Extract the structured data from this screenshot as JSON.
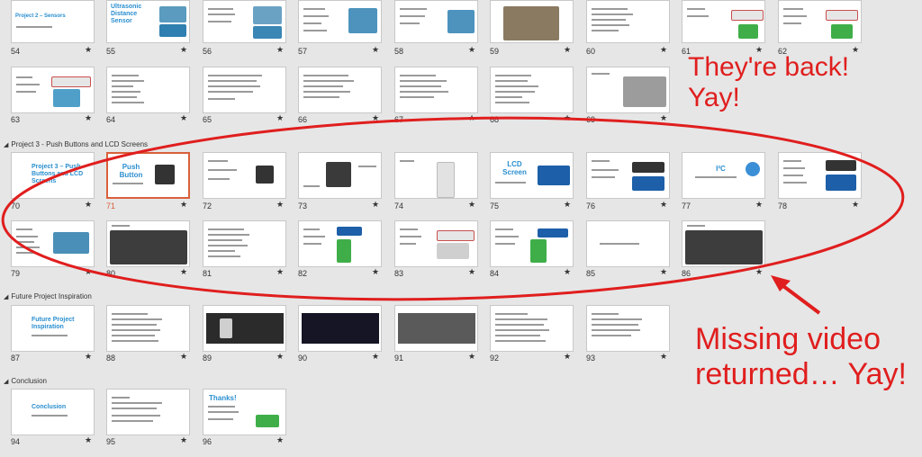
{
  "sections": [
    {
      "label": "Project 3 - Push Buttons and LCD Screens"
    },
    {
      "label": "Future Project Inspiration"
    },
    {
      "label": "Conclusion"
    }
  ],
  "rows": [
    {
      "slides": [
        {
          "num": "54",
          "title": "Project 2 – Sensors"
        },
        {
          "num": "55",
          "title": "Ultrasonic Distance Sensor"
        },
        {
          "num": "56",
          "title": ""
        },
        {
          "num": "57",
          "title": ""
        },
        {
          "num": "58",
          "title": ""
        },
        {
          "num": "59",
          "title": ""
        },
        {
          "num": "60",
          "title": ""
        },
        {
          "num": "61",
          "title": ""
        },
        {
          "num": "62",
          "title": ""
        }
      ]
    },
    {
      "slides": [
        {
          "num": "63",
          "title": ""
        },
        {
          "num": "64",
          "title": ""
        },
        {
          "num": "65",
          "title": ""
        },
        {
          "num": "66",
          "title": ""
        },
        {
          "num": "67",
          "title": ""
        },
        {
          "num": "68",
          "title": ""
        },
        {
          "num": "69",
          "title": ""
        }
      ]
    },
    {
      "slides": [
        {
          "num": "70",
          "title": "Project 3 – Push Buttons and LCD Screens"
        },
        {
          "num": "71",
          "title": "Push Button"
        },
        {
          "num": "72",
          "title": ""
        },
        {
          "num": "73",
          "title": ""
        },
        {
          "num": "74",
          "title": ""
        },
        {
          "num": "75",
          "title": "LCD Screen"
        },
        {
          "num": "76",
          "title": ""
        },
        {
          "num": "77",
          "title": "I²C"
        },
        {
          "num": "78",
          "title": ""
        }
      ]
    },
    {
      "slides": [
        {
          "num": "79",
          "title": ""
        },
        {
          "num": "80",
          "title": ""
        },
        {
          "num": "81",
          "title": ""
        },
        {
          "num": "82",
          "title": ""
        },
        {
          "num": "83",
          "title": ""
        },
        {
          "num": "84",
          "title": ""
        },
        {
          "num": "85",
          "title": ""
        },
        {
          "num": "86",
          "title": ""
        }
      ]
    },
    {
      "slides": [
        {
          "num": "87",
          "title": "Future Project Inspiration"
        },
        {
          "num": "88",
          "title": ""
        },
        {
          "num": "89",
          "title": ""
        },
        {
          "num": "90",
          "title": ""
        },
        {
          "num": "91",
          "title": ""
        },
        {
          "num": "92",
          "title": ""
        },
        {
          "num": "93",
          "title": ""
        }
      ]
    },
    {
      "slides": [
        {
          "num": "94",
          "title": "Conclusion"
        },
        {
          "num": "95",
          "title": ""
        },
        {
          "num": "96",
          "title": "Thanks!"
        }
      ]
    }
  ],
  "star_glyph": "★",
  "section_toggle_glyph": "◢",
  "annotations": {
    "top": "They're back! Yay!",
    "bottom": "Missing video returned… Yay!"
  },
  "colors": {
    "annotation": "#e01e1e",
    "selection": "#d9603b",
    "slide_title": "#2a8fcf"
  }
}
